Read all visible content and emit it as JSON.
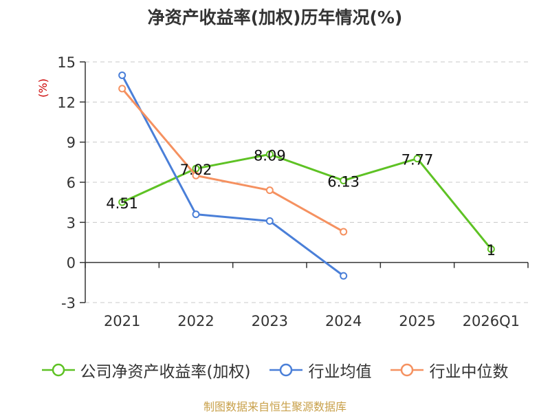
{
  "chart_data": {
    "type": "line",
    "title": "净资产收益率(加权)历年情况(%)",
    "ylabel": "(%)",
    "xlabel": "",
    "categories": [
      "2021",
      "2022",
      "2023",
      "2024",
      "2025",
      "2026Q1"
    ],
    "ylim": [
      -3,
      15
    ],
    "yticks": [
      -3,
      0,
      3,
      6,
      9,
      12,
      15
    ],
    "grid": true,
    "legend_position": "bottom",
    "series": [
      {
        "name": "公司净资产收益率(加权)",
        "color": "#5ec224",
        "values": [
          4.51,
          7.02,
          8.09,
          6.13,
          7.77,
          1
        ],
        "labels": [
          "4.51",
          "7.02",
          "8.09",
          "6.13",
          "7.77",
          "1"
        ]
      },
      {
        "name": "行业均值",
        "color": "#4a7fd8",
        "values": [
          14.0,
          3.6,
          3.1,
          -1.0,
          null,
          null
        ],
        "labels": null
      },
      {
        "name": "行业中位数",
        "color": "#f59160",
        "values": [
          13.0,
          6.5,
          5.4,
          2.3,
          null,
          null
        ],
        "labels": null
      }
    ],
    "source": "制图数据来自恒生聚源数据库"
  }
}
